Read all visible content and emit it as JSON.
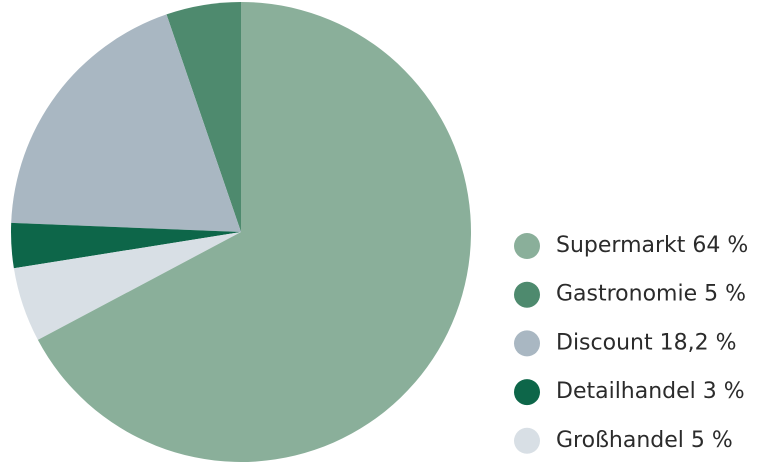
{
  "chart_data": {
    "type": "pie",
    "categories": [
      "Supermarkt",
      "Gastronomie",
      "Discount",
      "Detailhandel",
      "Großhandel"
    ],
    "values": [
      64,
      5,
      18.2,
      3,
      5
    ],
    "value_labels": [
      "64 %",
      "5 %",
      "18,2 %",
      "3 %",
      "5 %"
    ],
    "colors": [
      "#8aaf9a",
      "#4e8a6e",
      "#a9b7c2",
      "#0d6649",
      "#d8dfe5"
    ],
    "legend": "right"
  }
}
